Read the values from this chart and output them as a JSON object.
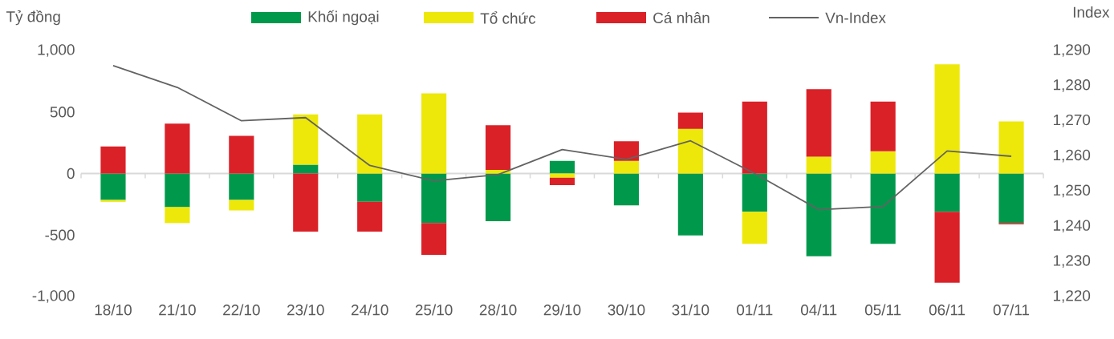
{
  "chart_data": {
    "type": "bar",
    "stacked": true,
    "legend": "top",
    "ylabel": "Tỷ đồng",
    "y2label": "Index",
    "categories": [
      "18/10",
      "21/10",
      "22/10",
      "23/10",
      "24/10",
      "25/10",
      "28/10",
      "29/10",
      "30/10",
      "31/10",
      "01/11",
      "04/11",
      "05/11",
      "06/11",
      "07/11"
    ],
    "series": [
      {
        "name": "Khối ngoại",
        "color": "#00994c",
        "values": [
          -215,
          -273,
          -215,
          72,
          -230,
          -402,
          -387,
          102,
          -259,
          -504,
          -311,
          -673,
          -571,
          -311,
          -402
        ]
      },
      {
        "name": "Tổ chức",
        "color": "#ede80a",
        "values": [
          -15,
          -130,
          -85,
          408,
          480,
          652,
          30,
          -35,
          102,
          363,
          -260,
          137,
          180,
          888,
          423
        ]
      },
      {
        "name": "Cá nhân",
        "color": "#da2128",
        "values": [
          220,
          405,
          306,
          -473,
          -243,
          -260,
          363,
          -60,
          160,
          132,
          584,
          549,
          404,
          -577,
          -11
        ]
      },
      {
        "name": "Vn-Index",
        "type": "line",
        "axis": "y2",
        "color": "#636363",
        "values": [
          1285.7,
          1279.5,
          1270.0,
          1270.9,
          1257.3,
          1252.9,
          1254.7,
          1261.8,
          1259.0,
          1264.3,
          1255.0,
          1244.7,
          1245.6,
          1261.4,
          1259.9
        ]
      }
    ],
    "ylim": [
      -1000,
      1000
    ],
    "yticks": [
      {
        "value": -1000,
        "label": "-1,000"
      },
      -500,
      0,
      500,
      {
        "value": 1000,
        "label": "1,000"
      }
    ],
    "y2lim": [
      1220,
      1290
    ],
    "y2ticks": [
      {
        "value": 1220,
        "label": "1,220"
      },
      {
        "value": 1230,
        "label": "1,230"
      },
      {
        "value": 1240,
        "label": "1,240"
      },
      {
        "value": 1250,
        "label": "1,250"
      },
      {
        "value": 1260,
        "label": "1,260"
      },
      {
        "value": 1270,
        "label": "1,270"
      },
      {
        "value": 1280,
        "label": "1,280"
      },
      {
        "value": 1290,
        "label": "1,290"
      }
    ]
  }
}
